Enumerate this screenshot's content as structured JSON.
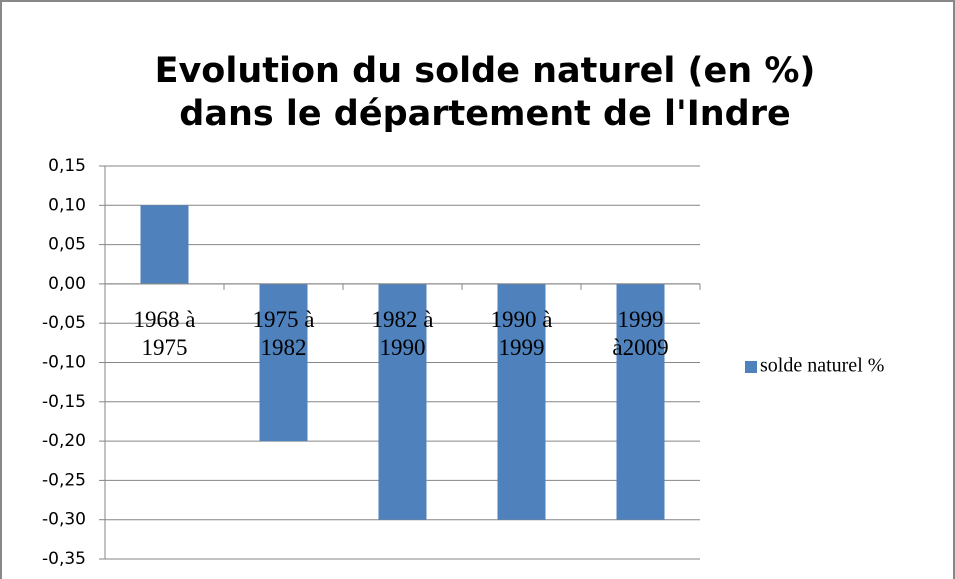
{
  "chart_data": {
    "type": "bar",
    "title": [
      "Evolution du solde naturel (en %)",
      "dans le département de l'Indre"
    ],
    "categories": [
      "1968 à 1975",
      "1975 à 1982",
      "1982 à 1990",
      "1990 à 1999",
      "1999 à2009"
    ],
    "series": [
      {
        "name": "solde naturel %",
        "color": "#4f81bd",
        "values": [
          0.1,
          -0.2,
          -0.3,
          -0.3,
          -0.3
        ]
      }
    ],
    "ylim": [
      -0.35,
      0.15
    ],
    "yticks": [
      {
        "value": 0.15,
        "label": "0,15"
      },
      {
        "value": 0.1,
        "label": "0,10"
      },
      {
        "value": 0.05,
        "label": "0,05"
      },
      {
        "value": 0,
        "label": "0,00"
      },
      {
        "value": -0.05,
        "label": "-0,05"
      },
      {
        "value": -0.1,
        "label": "-0,10"
      },
      {
        "value": -0.15,
        "label": "-0,15"
      },
      {
        "value": -0.2,
        "label": "-0,20"
      },
      {
        "value": -0.25,
        "label": "-0,25"
      },
      {
        "value": -0.3,
        "label": "-0,30"
      },
      {
        "value": -0.35,
        "label": "-0,35"
      }
    ],
    "grid": true,
    "legend": "right"
  }
}
